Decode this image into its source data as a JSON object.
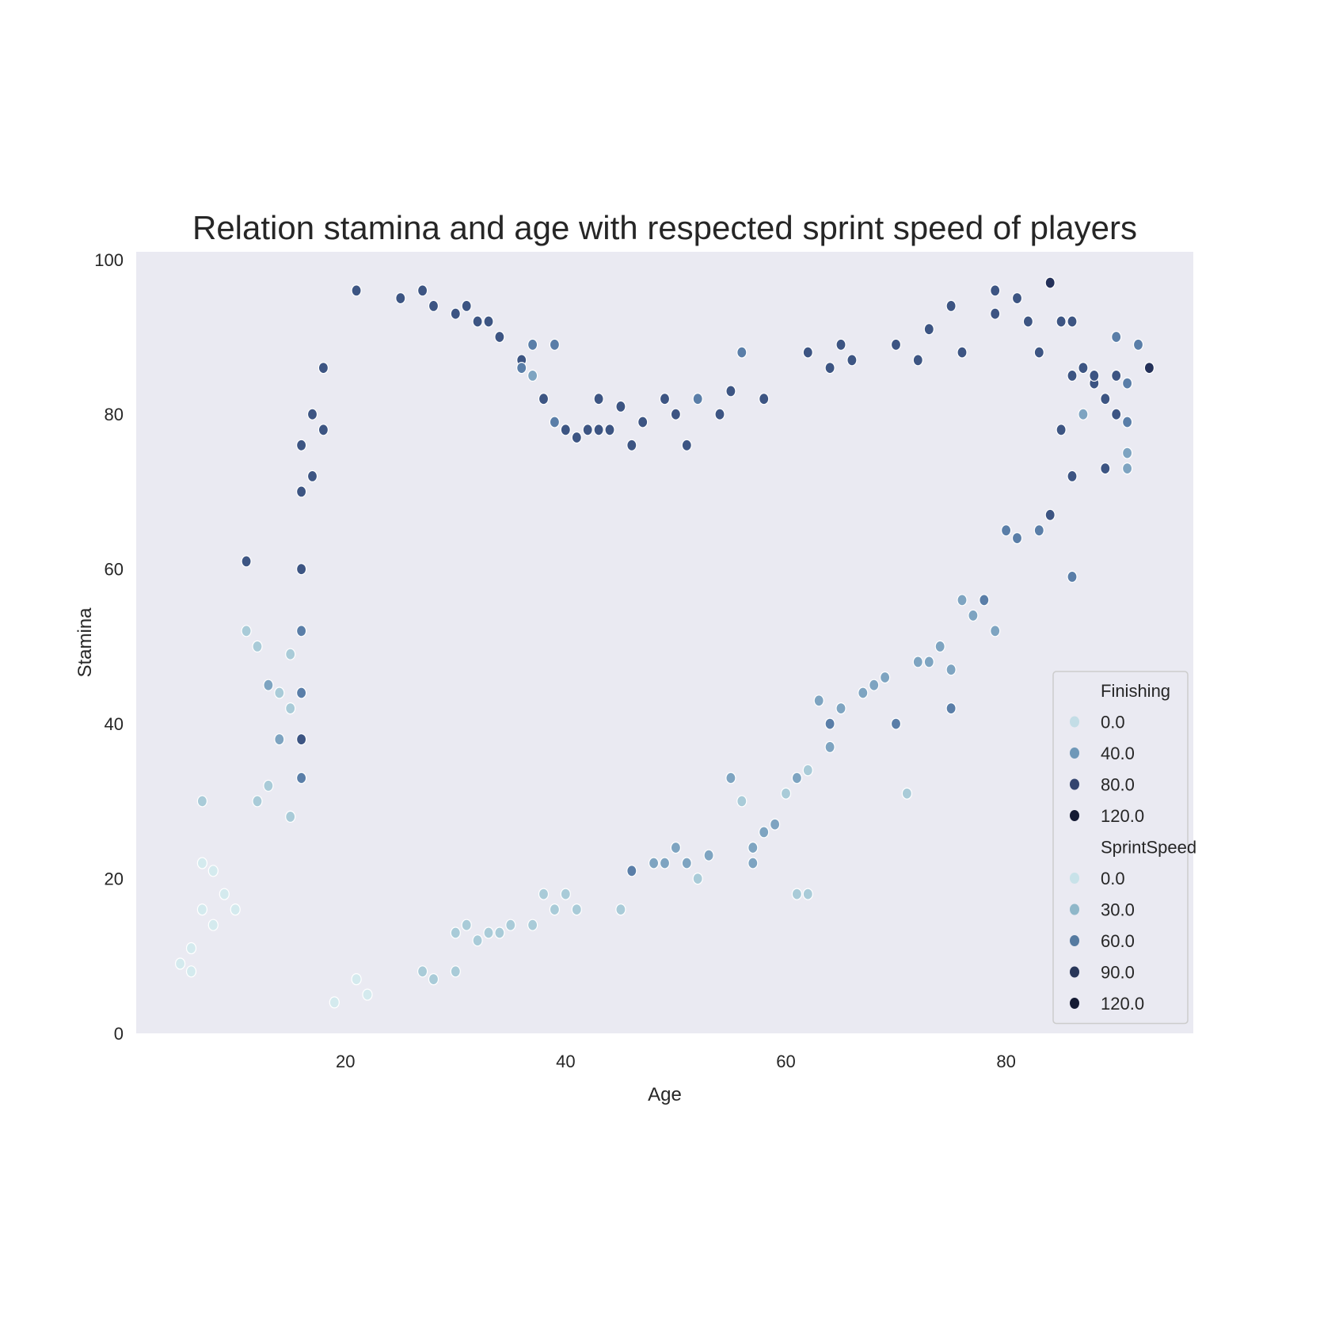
{
  "chart_data": {
    "type": "scatter",
    "title": "Relation stamina and age with respected sprint speed of players",
    "xlabel": "Age",
    "ylabel": "Stamina",
    "xlim": [
      1,
      97
    ],
    "ylim": [
      0,
      101
    ],
    "x_ticks": [
      20,
      40,
      60,
      80
    ],
    "y_ticks": [
      0,
      20,
      40,
      60,
      80,
      100
    ],
    "grid": false,
    "background": "#eaeaf2",
    "legend_position": "lower-right",
    "legend": {
      "groups": [
        {
          "title": "Finishing",
          "entries": [
            {
              "label": "0.0",
              "color": "#c3dde6"
            },
            {
              "label": "40.0",
              "color": "#6f98b8"
            },
            {
              "label": "80.0",
              "color": "#34456f"
            },
            {
              "label": "120.0",
              "color": "#141a33"
            }
          ]
        },
        {
          "title": "SprintSpeed",
          "entries": [
            {
              "label": "0.0",
              "color": "#c8e2e9"
            },
            {
              "label": "30.0",
              "color": "#8fb7c9"
            },
            {
              "label": "60.0",
              "color": "#557aa0"
            },
            {
              "label": "90.0",
              "color": "#283659"
            },
            {
              "label": "120.0",
              "color": "#141a33"
            }
          ]
        }
      ]
    },
    "color_scale": [
      "#d4eaee",
      "#a9cbd8",
      "#7ea4c1",
      "#5a7ea8",
      "#3d5583",
      "#24315a",
      "#141a33"
    ],
    "points": [
      [
        5,
        9,
        5
      ],
      [
        6,
        11,
        10
      ],
      [
        6,
        8,
        5
      ],
      [
        7,
        30,
        20
      ],
      [
        7,
        22,
        15
      ],
      [
        7,
        16,
        5
      ],
      [
        8,
        21,
        10
      ],
      [
        8,
        14,
        10
      ],
      [
        9,
        18,
        10
      ],
      [
        10,
        16,
        15
      ],
      [
        11,
        61,
        70
      ],
      [
        11,
        52,
        30
      ],
      [
        12,
        50,
        20
      ],
      [
        12,
        30,
        20
      ],
      [
        13,
        45,
        40
      ],
      [
        13,
        32,
        20
      ],
      [
        14,
        44,
        30
      ],
      [
        14,
        38,
        40
      ],
      [
        15,
        49,
        30
      ],
      [
        15,
        42,
        30
      ],
      [
        15,
        28,
        25
      ],
      [
        16,
        38,
        70
      ],
      [
        16,
        33,
        60
      ],
      [
        16,
        76,
        80
      ],
      [
        16,
        70,
        75
      ],
      [
        16,
        60,
        70
      ],
      [
        16,
        52,
        65
      ],
      [
        16,
        44,
        60
      ],
      [
        17,
        80,
        85
      ],
      [
        17,
        72,
        70
      ],
      [
        18,
        86,
        75
      ],
      [
        18,
        78,
        75
      ],
      [
        19,
        4,
        5
      ],
      [
        21,
        96,
        80
      ],
      [
        21,
        7,
        15
      ],
      [
        22,
        5,
        10
      ],
      [
        25,
        95,
        75
      ],
      [
        27,
        96,
        75
      ],
      [
        27,
        8,
        20
      ],
      [
        28,
        7,
        20
      ],
      [
        28,
        94,
        80
      ],
      [
        30,
        8,
        20
      ],
      [
        30,
        93,
        70
      ],
      [
        30,
        13,
        30
      ],
      [
        31,
        94,
        75
      ],
      [
        31,
        14,
        30
      ],
      [
        32,
        92,
        70
      ],
      [
        32,
        12,
        25
      ],
      [
        33,
        92,
        70
      ],
      [
        33,
        13,
        30
      ],
      [
        34,
        90,
        70
      ],
      [
        34,
        13,
        30
      ],
      [
        35,
        14,
        30
      ],
      [
        36,
        87,
        70
      ],
      [
        36,
        86,
        60
      ],
      [
        37,
        89,
        60
      ],
      [
        37,
        85,
        50
      ],
      [
        37,
        14,
        30
      ],
      [
        38,
        82,
        70
      ],
      [
        38,
        18,
        30
      ],
      [
        39,
        89,
        60
      ],
      [
        39,
        79,
        60
      ],
      [
        39,
        16,
        30
      ],
      [
        40,
        78,
        70
      ],
      [
        40,
        18,
        30
      ],
      [
        41,
        16,
        30
      ],
      [
        41,
        77,
        75
      ],
      [
        42,
        78,
        70
      ],
      [
        43,
        78,
        70
      ],
      [
        43,
        82,
        75
      ],
      [
        44,
        78,
        70
      ],
      [
        45,
        81,
        70
      ],
      [
        45,
        16,
        30
      ],
      [
        46,
        76,
        80
      ],
      [
        46,
        21,
        60
      ],
      [
        47,
        79,
        75
      ],
      [
        48,
        22,
        40
      ],
      [
        49,
        82,
        75
      ],
      [
        49,
        22,
        40
      ],
      [
        50,
        80,
        75
      ],
      [
        50,
        24,
        40
      ],
      [
        51,
        76,
        80
      ],
      [
        51,
        22,
        40
      ],
      [
        52,
        82,
        60
      ],
      [
        52,
        20,
        30
      ],
      [
        53,
        23,
        40
      ],
      [
        54,
        80,
        80
      ],
      [
        55,
        83,
        80
      ],
      [
        55,
        33,
        40
      ],
      [
        56,
        88,
        60
      ],
      [
        56,
        30,
        30
      ],
      [
        57,
        22,
        50
      ],
      [
        57,
        24,
        50
      ],
      [
        58,
        82,
        70
      ],
      [
        58,
        26,
        40
      ],
      [
        59,
        27,
        40
      ],
      [
        60,
        31,
        30
      ],
      [
        61,
        18,
        30
      ],
      [
        61,
        33,
        40
      ],
      [
        62,
        18,
        30
      ],
      [
        62,
        34,
        30
      ],
      [
        62,
        88,
        70
      ],
      [
        63,
        43,
        50
      ],
      [
        64,
        40,
        60
      ],
      [
        64,
        37,
        50
      ],
      [
        64,
        86,
        70
      ],
      [
        65,
        89,
        70
      ],
      [
        65,
        42,
        40
      ],
      [
        66,
        87,
        70
      ],
      [
        67,
        44,
        40
      ],
      [
        68,
        45,
        40
      ],
      [
        69,
        46,
        40
      ],
      [
        70,
        40,
        60
      ],
      [
        70,
        89,
        75
      ],
      [
        71,
        31,
        30
      ],
      [
        72,
        87,
        75
      ],
      [
        72,
        48,
        40
      ],
      [
        73,
        91,
        80
      ],
      [
        73,
        48,
        40
      ],
      [
        74,
        50,
        40
      ],
      [
        75,
        94,
        80
      ],
      [
        75,
        42,
        60
      ],
      [
        75,
        47,
        50
      ],
      [
        76,
        88,
        75
      ],
      [
        76,
        56,
        40
      ],
      [
        77,
        54,
        40
      ],
      [
        78,
        56,
        60
      ],
      [
        79,
        52,
        40
      ],
      [
        79,
        96,
        80
      ],
      [
        79,
        93,
        80
      ],
      [
        80,
        65,
        60
      ],
      [
        81,
        95,
        80
      ],
      [
        81,
        64,
        60
      ],
      [
        82,
        92,
        80
      ],
      [
        83,
        65,
        60
      ],
      [
        83,
        88,
        80
      ],
      [
        84,
        97,
        100
      ],
      [
        84,
        67,
        70
      ],
      [
        85,
        92,
        70
      ],
      [
        85,
        78,
        70
      ],
      [
        86,
        72,
        70
      ],
      [
        86,
        59,
        60
      ],
      [
        86,
        92,
        70
      ],
      [
        87,
        86,
        70
      ],
      [
        87,
        80,
        40
      ],
      [
        88,
        84,
        70
      ],
      [
        89,
        82,
        70
      ],
      [
        90,
        90,
        60
      ],
      [
        90,
        80,
        70
      ],
      [
        90,
        85,
        70
      ],
      [
        91,
        84,
        60
      ],
      [
        91,
        79,
        60
      ],
      [
        91,
        75,
        40
      ],
      [
        91,
        73,
        40
      ],
      [
        92,
        89,
        60
      ],
      [
        93,
        86,
        90
      ],
      [
        89,
        73,
        70
      ],
      [
        86,
        85,
        80
      ],
      [
        88,
        85,
        80
      ]
    ]
  }
}
